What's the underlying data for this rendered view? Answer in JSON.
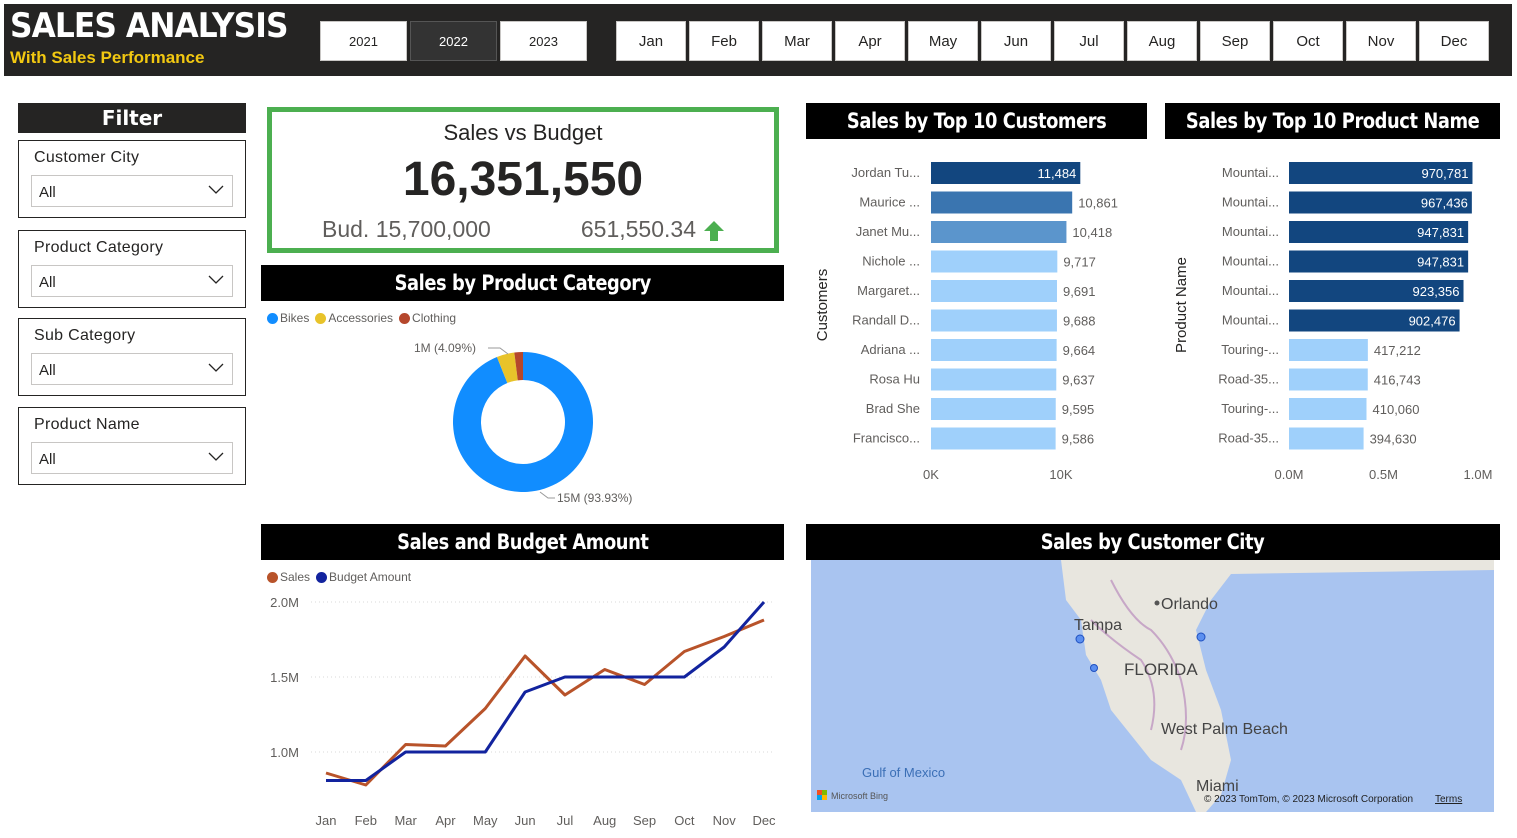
{
  "header": {
    "title": "SALES ANALYSIS",
    "subtitle": "With Sales Performance",
    "years": [
      "2021",
      "2022",
      "2023"
    ],
    "selected_year": "2022",
    "months": [
      "Jan",
      "Feb",
      "Mar",
      "Apr",
      "May",
      "Jun",
      "Jul",
      "Aug",
      "Sep",
      "Oct",
      "Nov",
      "Dec"
    ]
  },
  "filter": {
    "title": "Filter",
    "slicers": [
      {
        "label": "Customer City",
        "value": "All"
      },
      {
        "label": "Product Category",
        "value": "All"
      },
      {
        "label": "Sub Category",
        "value": "All"
      },
      {
        "label": "Product Name",
        "value": "All"
      }
    ]
  },
  "kpi": {
    "title": "Sales vs Budget",
    "value": "16,351,550",
    "budget": "Bud. 15,700,000",
    "difference": "651,550.34",
    "trend": "up",
    "trend_color": "#4caf50"
  },
  "colors": {
    "header_bg": "#252423",
    "subtitle": "#f2c811",
    "kpi_border": "#4caf50",
    "bar_dark": "#12467f",
    "bar_mid": "#3a75b0",
    "bar_light_mid": "#5b95cc",
    "bar_light": "#9fd0fb",
    "bikes": "#118dff",
    "accessories": "#e8c32a",
    "clothing": "#b5472c",
    "sales_line": "#b8532a",
    "budget_line": "#12239e"
  },
  "sections": {
    "category": "Sales by Product Category",
    "customers": "Sales by Top 10 Customers",
    "products": "Sales by Top 10 Product Name",
    "line": "Sales and Budget Amount",
    "map": "Sales by Customer City"
  },
  "map": {
    "labels": [
      "Orlando",
      "Tampa",
      "FLORIDA",
      "West Palm Beach",
      "Miami",
      "Gulf of Mexico"
    ],
    "attribution": "© 2023 TomTom, © 2023 Microsoft Corporation",
    "terms": "Terms",
    "provider": "Microsoft Bing"
  },
  "chart_data": [
    {
      "type": "pie",
      "variant": "donut",
      "title": "Sales by Product Category",
      "legend": [
        "Bikes",
        "Accessories",
        "Clothing"
      ],
      "legend_position": "top-left",
      "values": [
        93.93,
        4.09,
        1.98
      ],
      "data_labels": [
        "15M (93.93%)",
        "1M (4.09%)",
        ""
      ]
    },
    {
      "type": "bar",
      "orientation": "horizontal",
      "title": "Sales by Top 10 Customers",
      "ylabel": "Customers",
      "categories": [
        "Jordan Tu...",
        "Maurice ...",
        "Janet Mu...",
        "Nichole ...",
        "Margaret...",
        "Randall D...",
        "Adriana ...",
        "Rosa Hu",
        "Brad She",
        "Francisco..."
      ],
      "values": [
        11484,
        10861,
        10418,
        9717,
        9691,
        9688,
        9664,
        9637,
        9595,
        9586
      ],
      "value_labels": [
        "11,484",
        "10,861",
        "10,418",
        "9,717",
        "9,691",
        "9,688",
        "9,664",
        "9,637",
        "9,595",
        "9,586"
      ],
      "xlim": [
        0,
        14000
      ],
      "xticks": [
        {
          "v": 0,
          "label": "0K"
        },
        {
          "v": 10000,
          "label": "10K"
        }
      ]
    },
    {
      "type": "bar",
      "orientation": "horizontal",
      "title": "Sales by Top 10 Product Name",
      "ylabel": "Product Name",
      "categories": [
        "Mountai...",
        "Mountai...",
        "Mountai...",
        "Mountai...",
        "Mountai...",
        "Mountai...",
        "Touring-...",
        "Road-35...",
        "Touring-...",
        "Road-35..."
      ],
      "values": [
        970781,
        967436,
        947831,
        947831,
        923356,
        902476,
        417212,
        416743,
        410060,
        394630
      ],
      "value_labels": [
        "970,781",
        "967,436",
        "947,831",
        "947,831",
        "923,356",
        "902,476",
        "417,212",
        "416,743",
        "410,060",
        "394,630"
      ],
      "xlim": [
        0,
        1000000
      ],
      "xticks": [
        {
          "v": 0,
          "label": "0.0M"
        },
        {
          "v": 500000,
          "label": "0.5M"
        },
        {
          "v": 1000000,
          "label": "1.0M"
        }
      ]
    },
    {
      "type": "line",
      "title": "Sales and Budget Amount",
      "legend": [
        "Sales",
        "Budget Amount"
      ],
      "legend_position": "top-left",
      "x": [
        "Jan",
        "Feb",
        "Mar",
        "Apr",
        "May",
        "Jun",
        "Jul",
        "Aug",
        "Sep",
        "Oct",
        "Nov",
        "Dec"
      ],
      "series": [
        {
          "name": "Sales",
          "values": [
            860000,
            780000,
            1050000,
            1040000,
            1290000,
            1640000,
            1380000,
            1550000,
            1450000,
            1670000,
            1770000,
            1880000
          ]
        },
        {
          "name": "Budget Amount",
          "values": [
            810000,
            810000,
            1000000,
            1000000,
            1000000,
            1400000,
            1500000,
            1500000,
            1500000,
            1500000,
            1700000,
            2000000
          ]
        }
      ],
      "ylim": [
        700000,
        2100000
      ],
      "yticks": [
        {
          "v": 1000000,
          "label": "1.0M"
        },
        {
          "v": 1500000,
          "label": "1.5M"
        },
        {
          "v": 2000000,
          "label": "2.0M"
        }
      ],
      "grid": true
    }
  ]
}
